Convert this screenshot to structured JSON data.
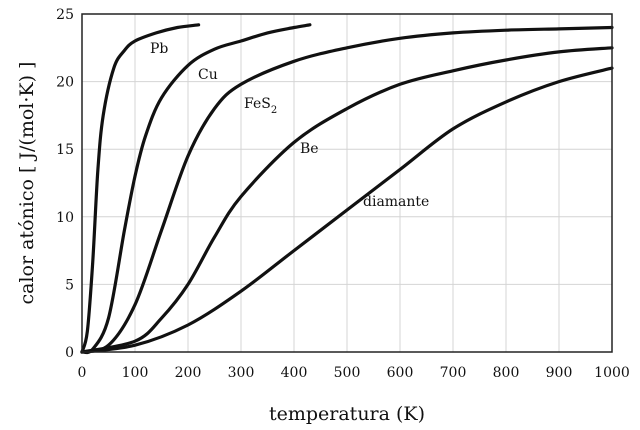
{
  "chart_data": {
    "type": "line",
    "xlabel": "temperatura (K)",
    "ylabel": "calor atónico [ J/(mol·K) ]",
    "xlim": [
      0,
      1000
    ],
    "ylim": [
      0,
      25
    ],
    "xticks": [
      "0",
      "100",
      "200",
      "300",
      "400",
      "500",
      "600",
      "700",
      "800",
      "900",
      "1000"
    ],
    "yticks": [
      "0",
      "5",
      "10",
      "15",
      "20",
      "25"
    ],
    "grid": true,
    "legend": "none",
    "series": [
      {
        "name": "Pb",
        "x": [
          0,
          10,
          20,
          30,
          40,
          60,
          80,
          100,
          140,
          180,
          220
        ],
        "y": [
          0,
          1.5,
          6.5,
          13.5,
          17.5,
          21.0,
          22.3,
          23.0,
          23.6,
          24.0,
          24.2
        ]
      },
      {
        "name": "Cu",
        "x": [
          0,
          20,
          50,
          80,
          100,
          120,
          150,
          200,
          250,
          300,
          350,
          400,
          430
        ],
        "y": [
          0,
          0.2,
          2.5,
          9.0,
          13.0,
          16.0,
          18.8,
          21.2,
          22.4,
          23.0,
          23.6,
          24.0,
          24.2
        ]
      },
      {
        "name": "FeS_2",
        "x": [
          0,
          50,
          100,
          150,
          200,
          250,
          300,
          400,
          500,
          600,
          700,
          800,
          900,
          1000
        ],
        "y": [
          0,
          0.5,
          3.5,
          9.0,
          14.5,
          18.0,
          19.8,
          21.5,
          22.5,
          23.2,
          23.6,
          23.8,
          23.9,
          24.0
        ]
      },
      {
        "name": "Be",
        "x": [
          0,
          100,
          150,
          200,
          250,
          300,
          400,
          500,
          600,
          700,
          800,
          900,
          1000
        ],
        "y": [
          0,
          0.8,
          2.5,
          5.0,
          8.5,
          11.5,
          15.5,
          18.0,
          19.8,
          20.8,
          21.6,
          22.2,
          22.5
        ]
      },
      {
        "name": "diamante",
        "x": [
          0,
          100,
          200,
          300,
          400,
          500,
          600,
          700,
          800,
          900,
          1000
        ],
        "y": [
          0,
          0.5,
          2.0,
          4.5,
          7.5,
          10.5,
          13.5,
          16.5,
          18.5,
          20.0,
          21.0
        ]
      }
    ],
    "labels": [
      {
        "text": "Pb",
        "sub": "",
        "series": "Pb"
      },
      {
        "text": "Cu",
        "sub": "",
        "series": "Cu"
      },
      {
        "text": "FeS",
        "sub": "2",
        "series": "FeS_2"
      },
      {
        "text": "Be",
        "sub": "",
        "series": "Be"
      },
      {
        "text": "diamante",
        "sub": "",
        "series": "diamante"
      }
    ]
  }
}
